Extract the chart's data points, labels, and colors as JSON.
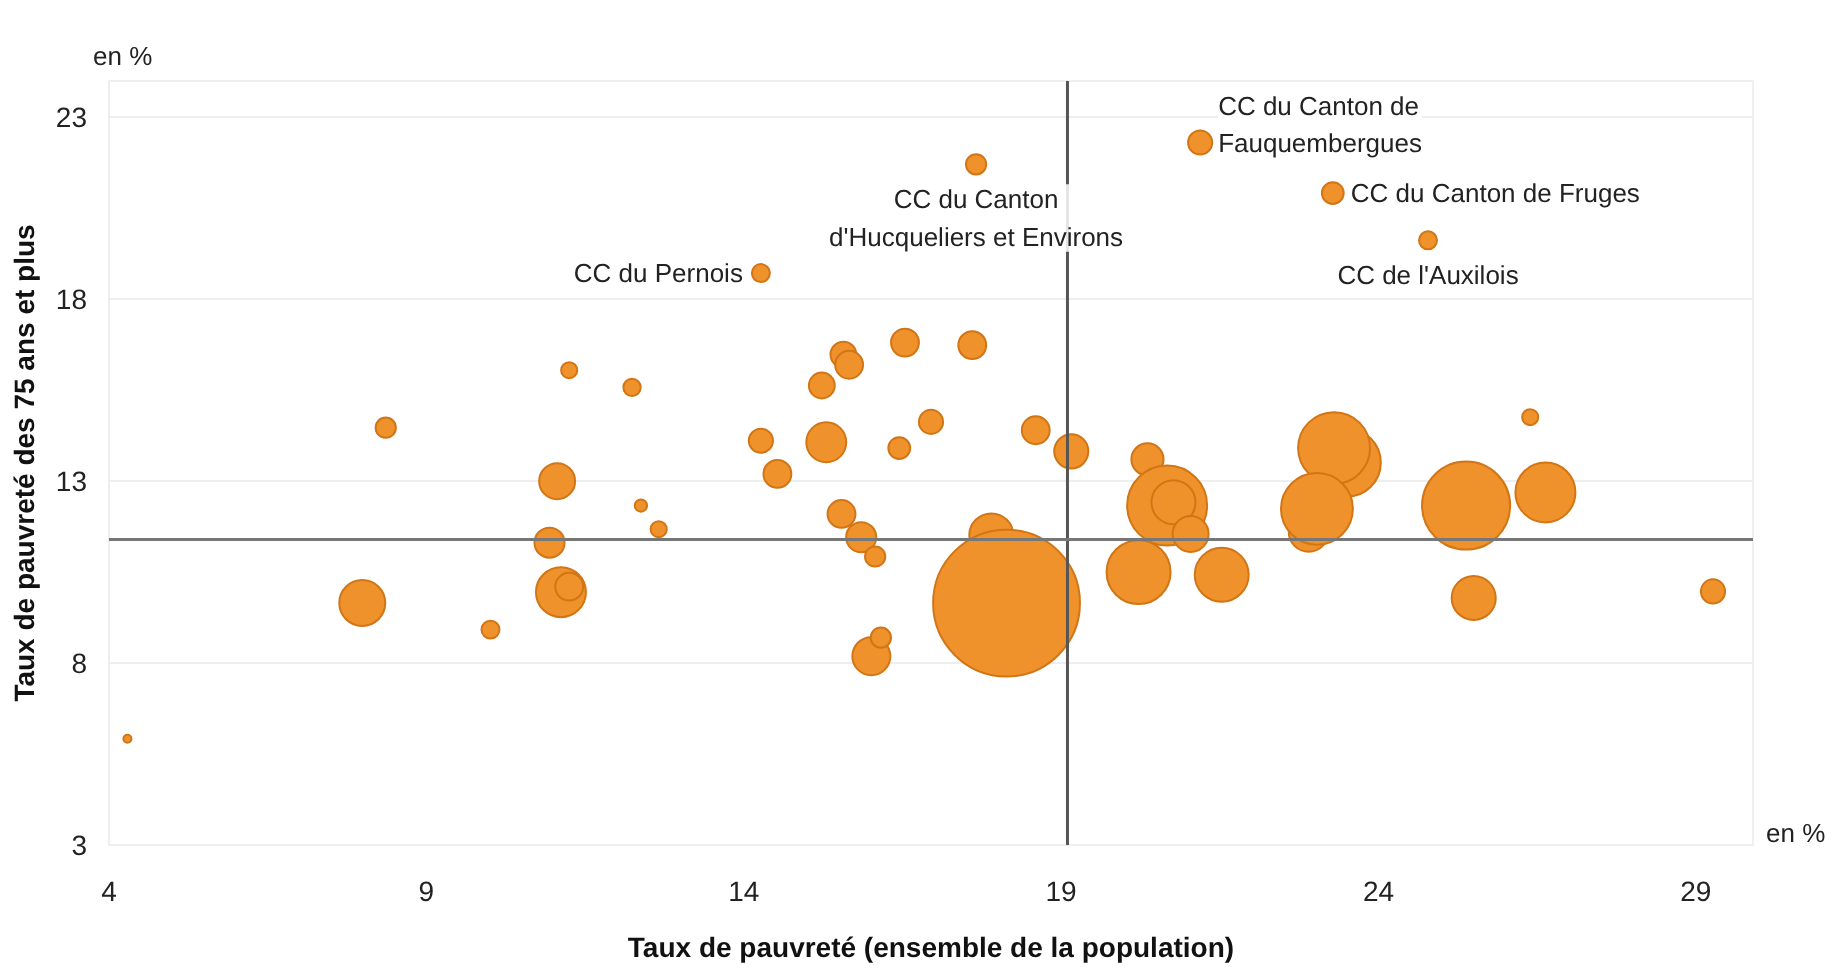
{
  "chart_data": {
    "type": "bubble",
    "xlabel": "Taux de pauvreté (ensemble de la population)",
    "ylabel": "Taux de pauvreté des 75 ans et plus",
    "xlim": [
      4,
      29.9
    ],
    "ylim": [
      3,
      24
    ],
    "xticks": [
      4,
      9,
      14,
      19,
      24,
      29
    ],
    "yticks": [
      3,
      8,
      13,
      18,
      23
    ],
    "grid": "y",
    "series": [
      {
        "color": "#f0922b",
        "x": [
          14.27,
          11.25,
          12.24,
          8.36,
          11.06,
          14.27,
          15.3,
          14.53,
          15.23,
          15.57,
          15.66,
          16.54,
          16.45,
          12.38,
          12.66,
          10.94,
          7.99,
          10.01,
          11.12,
          11.25,
          4.29,
          15.54,
          15.85,
          16.07,
          16.01,
          16.16,
          17.66,
          21.19,
          23.28,
          24.78,
          17.6,
          16.95,
          18.6,
          19.16,
          20.36,
          23.5,
          23.3,
          26.39,
          20.67,
          20.77,
          21.04,
          20.22,
          21.53,
          22.9,
          23.03,
          25.38,
          26.63,
          25.5,
          29.27,
          17.9,
          18.14
        ],
        "values": [
          18.72,
          16.05,
          15.58,
          14.47,
          13.0,
          14.11,
          14.07,
          13.2,
          15.63,
          16.48,
          16.2,
          16.81,
          13.91,
          12.33,
          11.68,
          11.31,
          9.65,
          8.92,
          9.95,
          10.1,
          5.92,
          12.1,
          11.46,
          10.93,
          8.19,
          8.7,
          21.71,
          22.31,
          20.92,
          19.62,
          16.74,
          14.63,
          14.4,
          13.82,
          13.6,
          13.51,
          13.91,
          14.76,
          12.33,
          12.42,
          11.55,
          10.5,
          10.43,
          11.61,
          12.24,
          12.33,
          12.69,
          9.79,
          9.97,
          11.51,
          9.65
        ],
        "sizes": [
          0.015,
          0.012,
          0.014,
          0.019,
          0.06,
          0.027,
          0.074,
          0.036,
          0.031,
          0.031,
          0.036,
          0.036,
          0.022,
          0.007,
          0.012,
          0.042,
          0.098,
          0.015,
          0.116,
          0.036,
          0.003,
          0.036,
          0.042,
          0.019,
          0.067,
          0.019,
          0.019,
          0.027,
          0.022,
          0.015,
          0.036,
          0.027,
          0.036,
          0.054,
          0.048,
          0.215,
          0.24,
          0.012,
          0.297,
          0.09,
          0.06,
          0.19,
          0.135,
          0.074,
          0.24,
          0.36,
          0.167,
          0.09,
          0.027,
          0.09,
          1
        ]
      }
    ],
    "ref_lines": [
      {
        "axis": "x",
        "value": 19.1,
        "color": "#555555"
      },
      {
        "axis": "y",
        "value": 11.4,
        "color": "#777777"
      }
    ],
    "annotations": [
      "en %",
      "en %",
      {
        "text": "CC du Pernois",
        "x": 14.27,
        "y": 18.72
      },
      {
        "text": "CC du Canton\nd'Hucqueliers et Environs",
        "x": 17.66,
        "y": 21.71
      },
      {
        "text": "CC du Canton de\nFauquembergues",
        "x": 21.19,
        "y": 22.31
      },
      {
        "text": "CC du Canton de Fruges",
        "x": 23.28,
        "y": 20.92
      },
      {
        "text": "CC de l'Auxilois",
        "x": 24.78,
        "y": 19.62
      }
    ]
  }
}
